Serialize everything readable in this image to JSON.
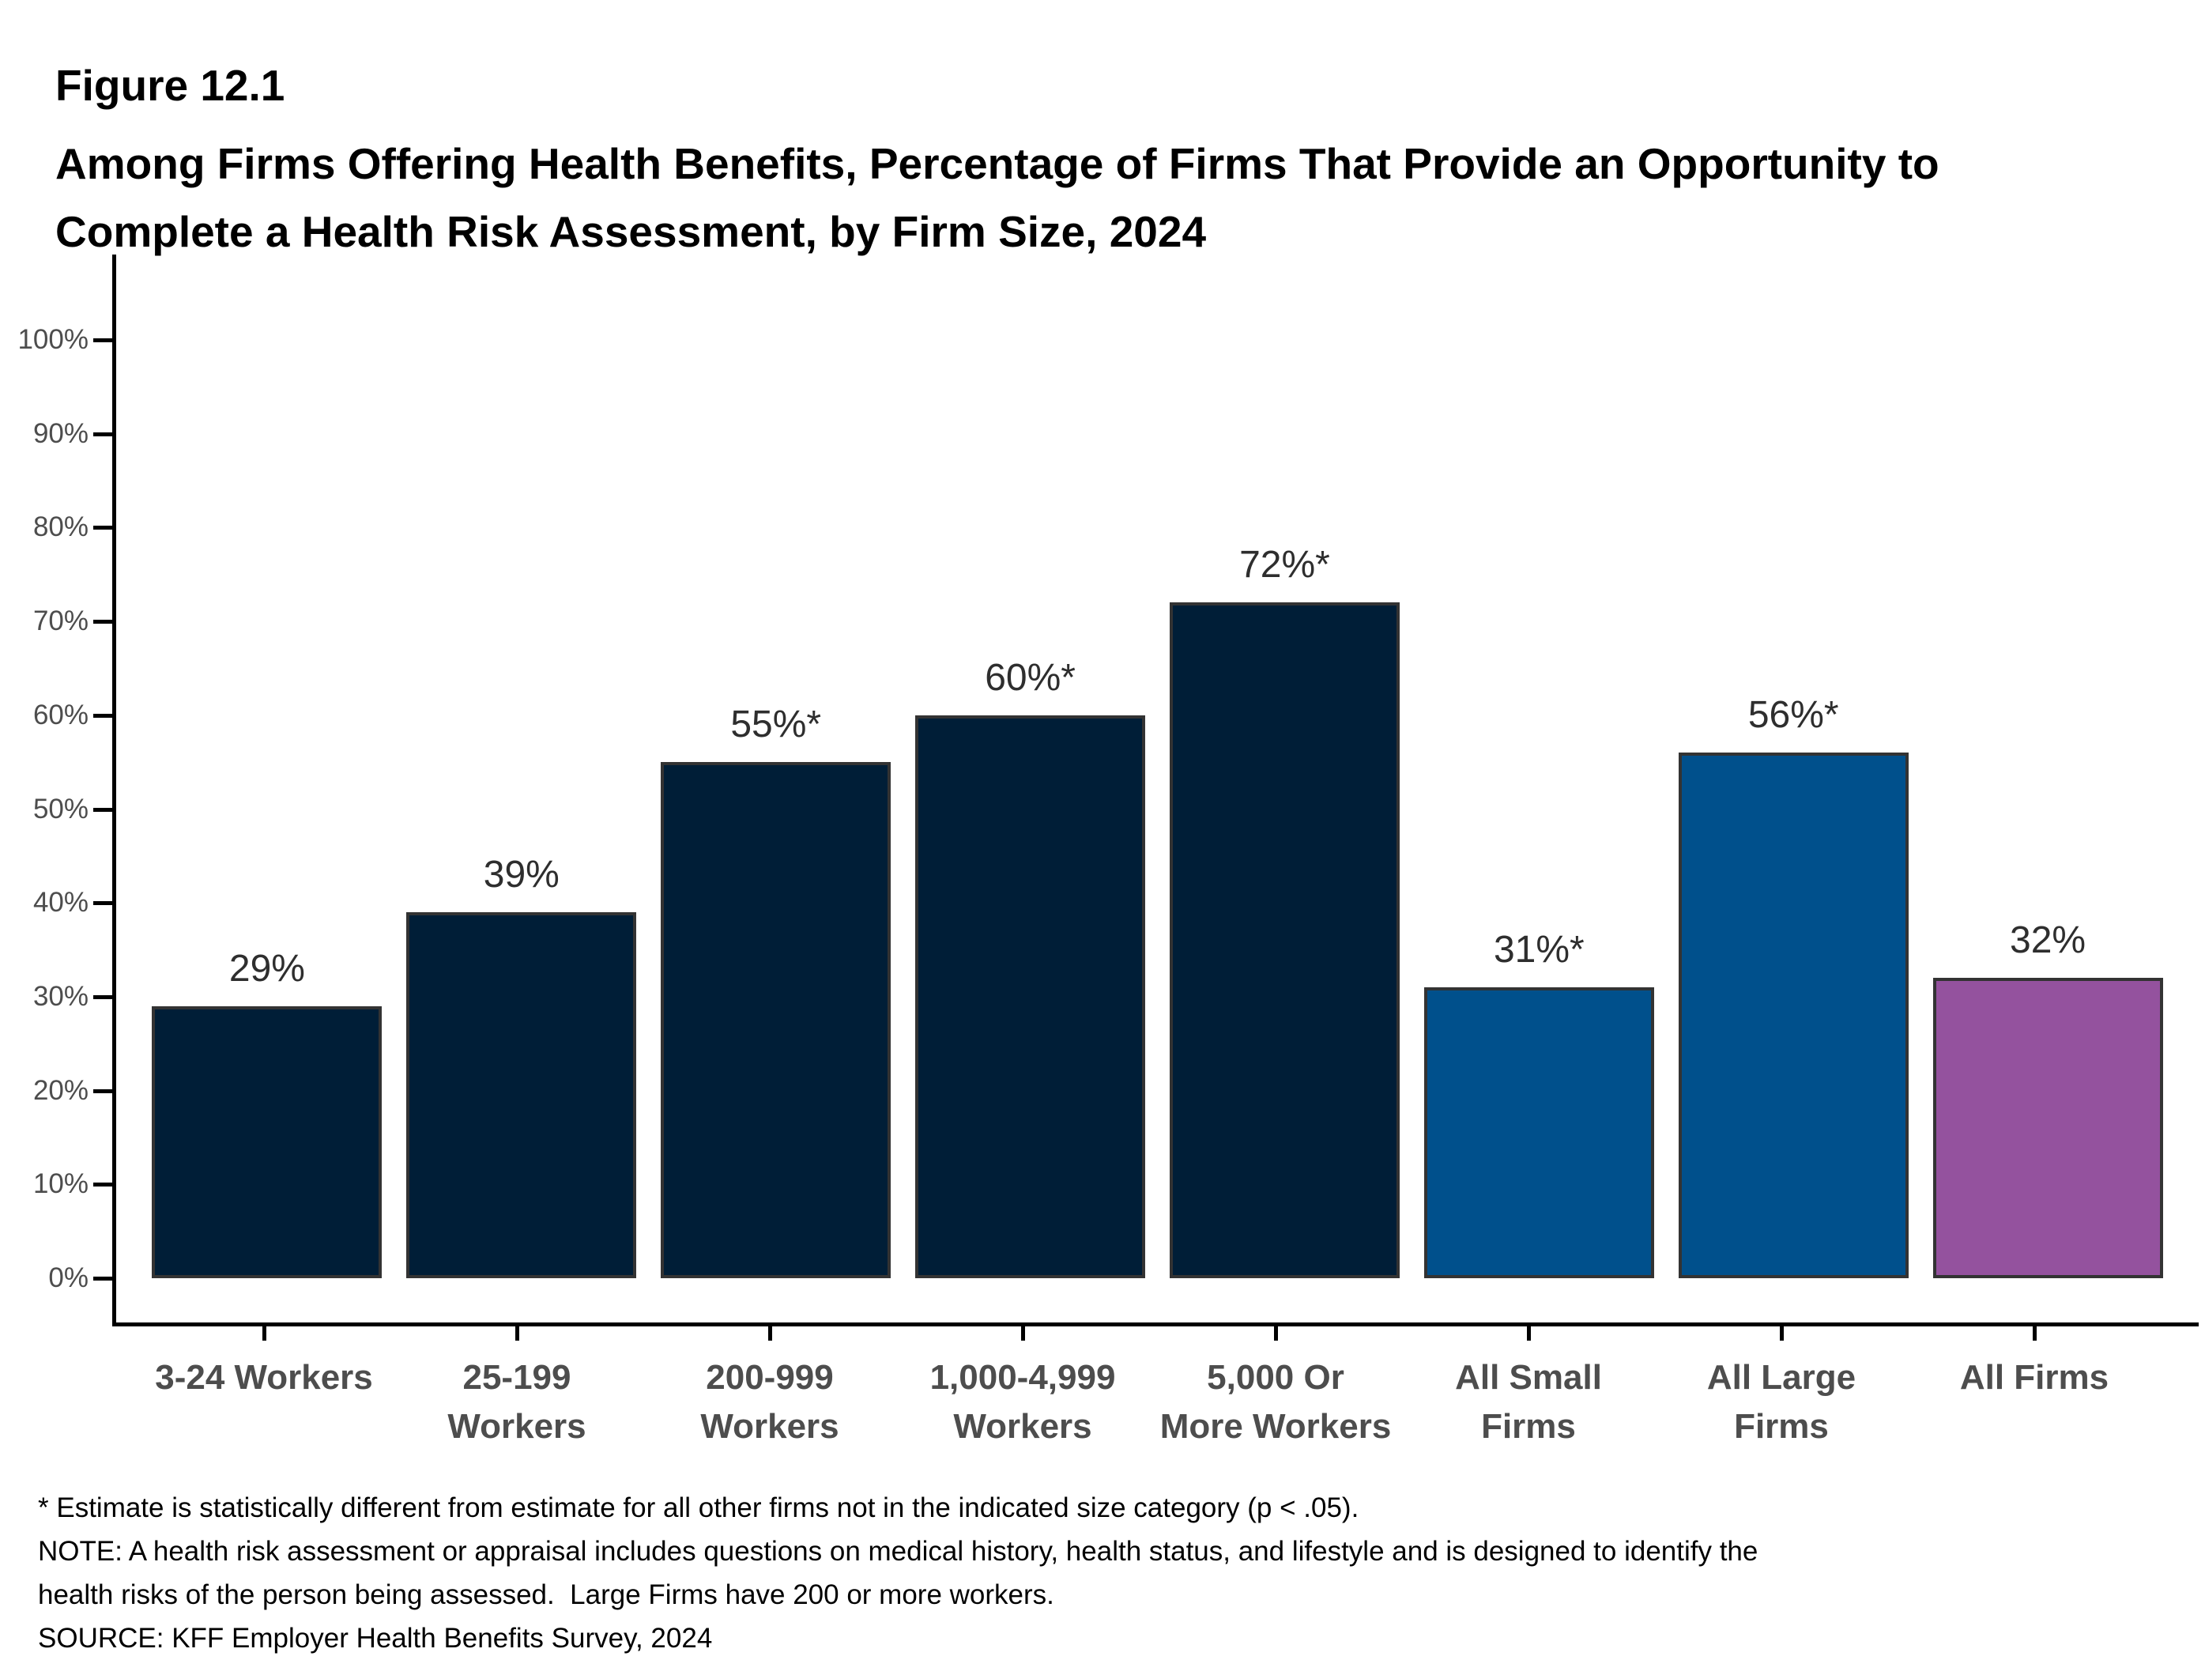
{
  "header": {
    "figure_label": "Figure 12.1",
    "title": "Among Firms Offering Health Benefits, Percentage of Firms That Provide an Opportunity to\nComplete a Health Risk Assessment, by Firm Size, 2024"
  },
  "chart_data": {
    "type": "bar",
    "title": "Among Firms Offering Health Benefits, Percentage of Firms That Provide an Opportunity to Complete a Health Risk Assessment, by Firm Size, 2024",
    "categories": [
      "3-24 Workers",
      "25-199\nWorkers",
      "200-999\nWorkers",
      "1,000-4,999\nWorkers",
      "5,000 Or\nMore Workers",
      "All Small\nFirms",
      "All Large\nFirms",
      "All Firms"
    ],
    "values": [
      29,
      39,
      55,
      60,
      72,
      31,
      56,
      32
    ],
    "data_labels": [
      "29%",
      "39%",
      "55%*",
      "60%*",
      "72%*",
      "31%*",
      "56%*",
      "32%"
    ],
    "bar_colors": [
      "#001e37",
      "#001e37",
      "#001e37",
      "#001e37",
      "#001e37",
      "#00508c",
      "#00508c",
      "#94529e"
    ],
    "y_ticks": [
      "0%",
      "10%",
      "20%",
      "30%",
      "40%",
      "50%",
      "60%",
      "70%",
      "80%",
      "90%",
      "100%"
    ],
    "xlabel": "",
    "ylabel": "",
    "ylim": [
      0,
      100
    ],
    "grid": false,
    "legend": false
  },
  "footnotes": {
    "text": "* Estimate is statistically different from estimate for all other firms not in the indicated size category (p < .05).\nNOTE: A health risk assessment or appraisal includes questions on medical history, health status, and lifestyle and is designed to identify the\nhealth risks of the person being assessed.  Large Firms have 200 or more workers.\nSOURCE: KFF Employer Health Benefits Survey, 2024"
  },
  "colors": {
    "dark_navy": "#001e37",
    "blue": "#00508c",
    "purple": "#94529e",
    "bar_border": "#333333",
    "axis_line": "#000000",
    "axis_label": "#4d4d4d",
    "data_label": "#2e2e2e",
    "title_text": "#000000"
  }
}
